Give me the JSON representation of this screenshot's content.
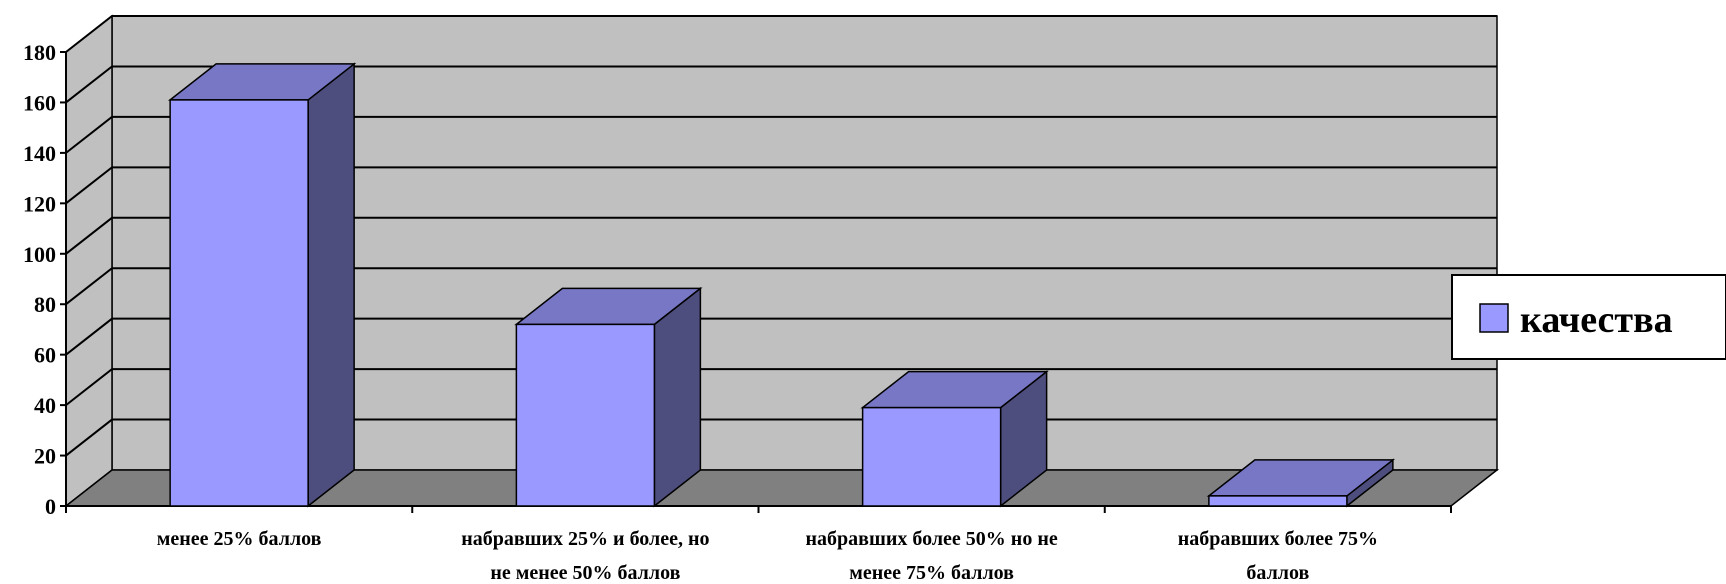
{
  "chart_data": {
    "type": "bar",
    "title": "",
    "xlabel": "",
    "ylabel": "",
    "ylim": [
      0,
      180
    ],
    "yticks": [
      0,
      20,
      40,
      60,
      80,
      100,
      120,
      140,
      160,
      180
    ],
    "grid": true,
    "legend_position": "right",
    "categories": [
      [
        "менее 25% баллов"
      ],
      [
        "набравших 25% и более, но",
        "не менее 50% баллов"
      ],
      [
        "набравших более 50% но не",
        "менее 75% баллов"
      ],
      [
        "набравших более  75%",
        "баллов"
      ]
    ],
    "series": [
      {
        "name": "качества",
        "values": [
          161,
          72,
          39,
          4
        ]
      }
    ],
    "colors": {
      "bar_front": "#9999ff",
      "bar_top": "#7777c6",
      "bar_side": "#4e4e7e",
      "wall": "#c0c0c0",
      "floor": "#808080"
    }
  }
}
